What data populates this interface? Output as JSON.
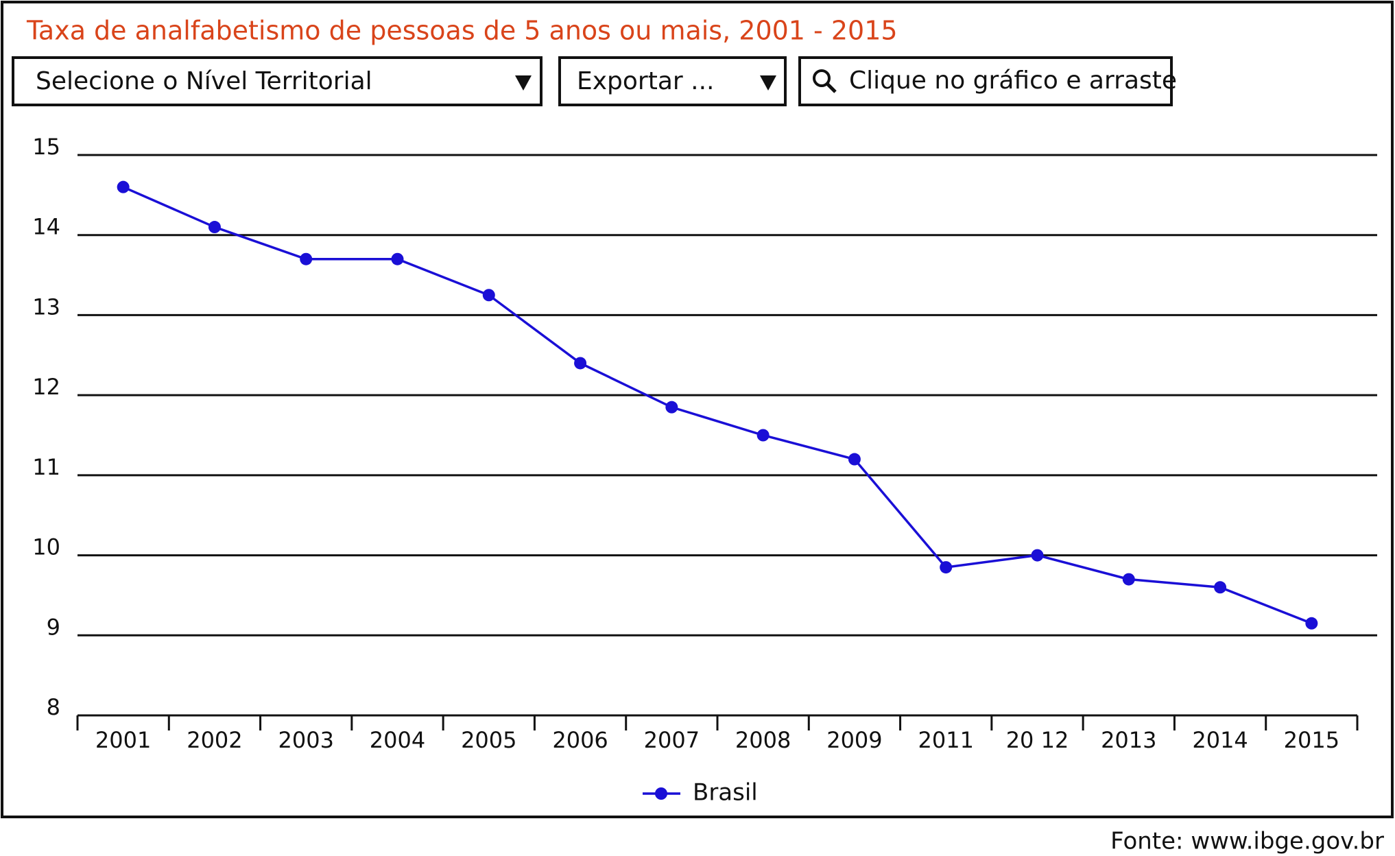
{
  "chart_data": {
    "type": "line",
    "title": "Taxa de analfabetismo de pessoas de 5 anos ou mais, 2001 - 2015",
    "categories": [
      "2001",
      "2002",
      "2003",
      "2004",
      "2005",
      "2006",
      "2007",
      "2008",
      "2009",
      "2011",
      "20 12",
      "2013",
      "2014",
      "2015"
    ],
    "series": [
      {
        "name": "Brasil",
        "color": "#1a0fd6",
        "values": [
          14.6,
          14.1,
          13.7,
          13.7,
          13.25,
          12.4,
          11.85,
          11.5,
          11.2,
          9.85,
          10.0,
          9.7,
          9.6,
          9.15
        ]
      }
    ],
    "ylim": [
      8,
      15
    ],
    "yticks": [
      8,
      9,
      10,
      11,
      12,
      13,
      14,
      15
    ],
    "grid": true,
    "legend": "bottom"
  },
  "controls": {
    "territorial_select": "Selecione o Nível Territorial",
    "export_select": "Exportar ...",
    "zoom_hint": "Clique no gráfico e arraste"
  },
  "footer": "Fonte: www.ibge.gov.br"
}
